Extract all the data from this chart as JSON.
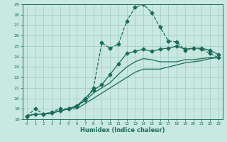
{
  "title": "",
  "xlabel": "Humidex (Indice chaleur)",
  "bg_color": "#c8e8e0",
  "grid_color": "#a0c8c8",
  "line_color": "#1a6b5a",
  "xlim": [
    -0.5,
    23.5
  ],
  "ylim": [
    18,
    29
  ],
  "xticks": [
    0,
    1,
    2,
    3,
    4,
    5,
    6,
    7,
    8,
    9,
    10,
    11,
    12,
    13,
    14,
    15,
    16,
    17,
    18,
    19,
    20,
    21,
    22,
    23
  ],
  "yticks": [
    18,
    19,
    20,
    21,
    22,
    23,
    24,
    25,
    26,
    27,
    28,
    29
  ],
  "series": [
    {
      "x": [
        0,
        1,
        2,
        3,
        4,
        5,
        6,
        7,
        8,
        9,
        10,
        11,
        12,
        13,
        14,
        15,
        16,
        17,
        18,
        19,
        20,
        21,
        22,
        23
      ],
      "y": [
        18.3,
        19.0,
        18.5,
        18.7,
        19.0,
        19.0,
        19.2,
        19.8,
        21.0,
        25.3,
        24.8,
        25.2,
        27.4,
        28.7,
        29.0,
        28.2,
        26.8,
        25.5,
        25.4,
        24.6,
        24.8,
        24.7,
        24.3,
        23.9
      ],
      "marker": "D",
      "markersize": 2.5,
      "dashed": true,
      "lw": 0.9
    },
    {
      "x": [
        0,
        1,
        2,
        3,
        4,
        5,
        6,
        7,
        8,
        9,
        10,
        11,
        12,
        13,
        14,
        15,
        16,
        17,
        18,
        19,
        20,
        21,
        22,
        23
      ],
      "y": [
        18.3,
        18.5,
        18.5,
        18.6,
        18.8,
        19.0,
        19.3,
        20.0,
        20.8,
        21.3,
        22.3,
        23.3,
        24.3,
        24.5,
        24.7,
        24.5,
        24.7,
        24.8,
        25.0,
        24.7,
        24.8,
        24.8,
        24.6,
        24.2
      ],
      "marker": "D",
      "markersize": 2.5,
      "dashed": false,
      "lw": 0.9
    },
    {
      "x": [
        0,
        1,
        2,
        3,
        4,
        5,
        6,
        7,
        8,
        9,
        10,
        11,
        12,
        13,
        14,
        15,
        16,
        17,
        18,
        19,
        20,
        21,
        22,
        23
      ],
      "y": [
        18.3,
        18.5,
        18.5,
        18.6,
        18.8,
        19.0,
        19.3,
        19.8,
        20.5,
        21.0,
        21.5,
        22.3,
        23.0,
        23.5,
        23.8,
        23.7,
        23.5,
        23.5,
        23.5,
        23.7,
        23.7,
        23.8,
        23.9,
        23.9
      ],
      "marker": null,
      "markersize": 0,
      "dashed": false,
      "lw": 0.9
    },
    {
      "x": [
        0,
        1,
        2,
        3,
        4,
        5,
        6,
        7,
        8,
        9,
        10,
        11,
        12,
        13,
        14,
        15,
        16,
        17,
        18,
        19,
        20,
        21,
        22,
        23
      ],
      "y": [
        18.3,
        18.5,
        18.5,
        18.6,
        18.8,
        19.0,
        19.0,
        19.5,
        20.0,
        20.5,
        21.0,
        21.5,
        22.0,
        22.5,
        22.8,
        22.8,
        22.8,
        23.0,
        23.2,
        23.4,
        23.5,
        23.6,
        23.8,
        23.9
      ],
      "marker": null,
      "markersize": 0,
      "dashed": false,
      "lw": 0.9
    }
  ]
}
